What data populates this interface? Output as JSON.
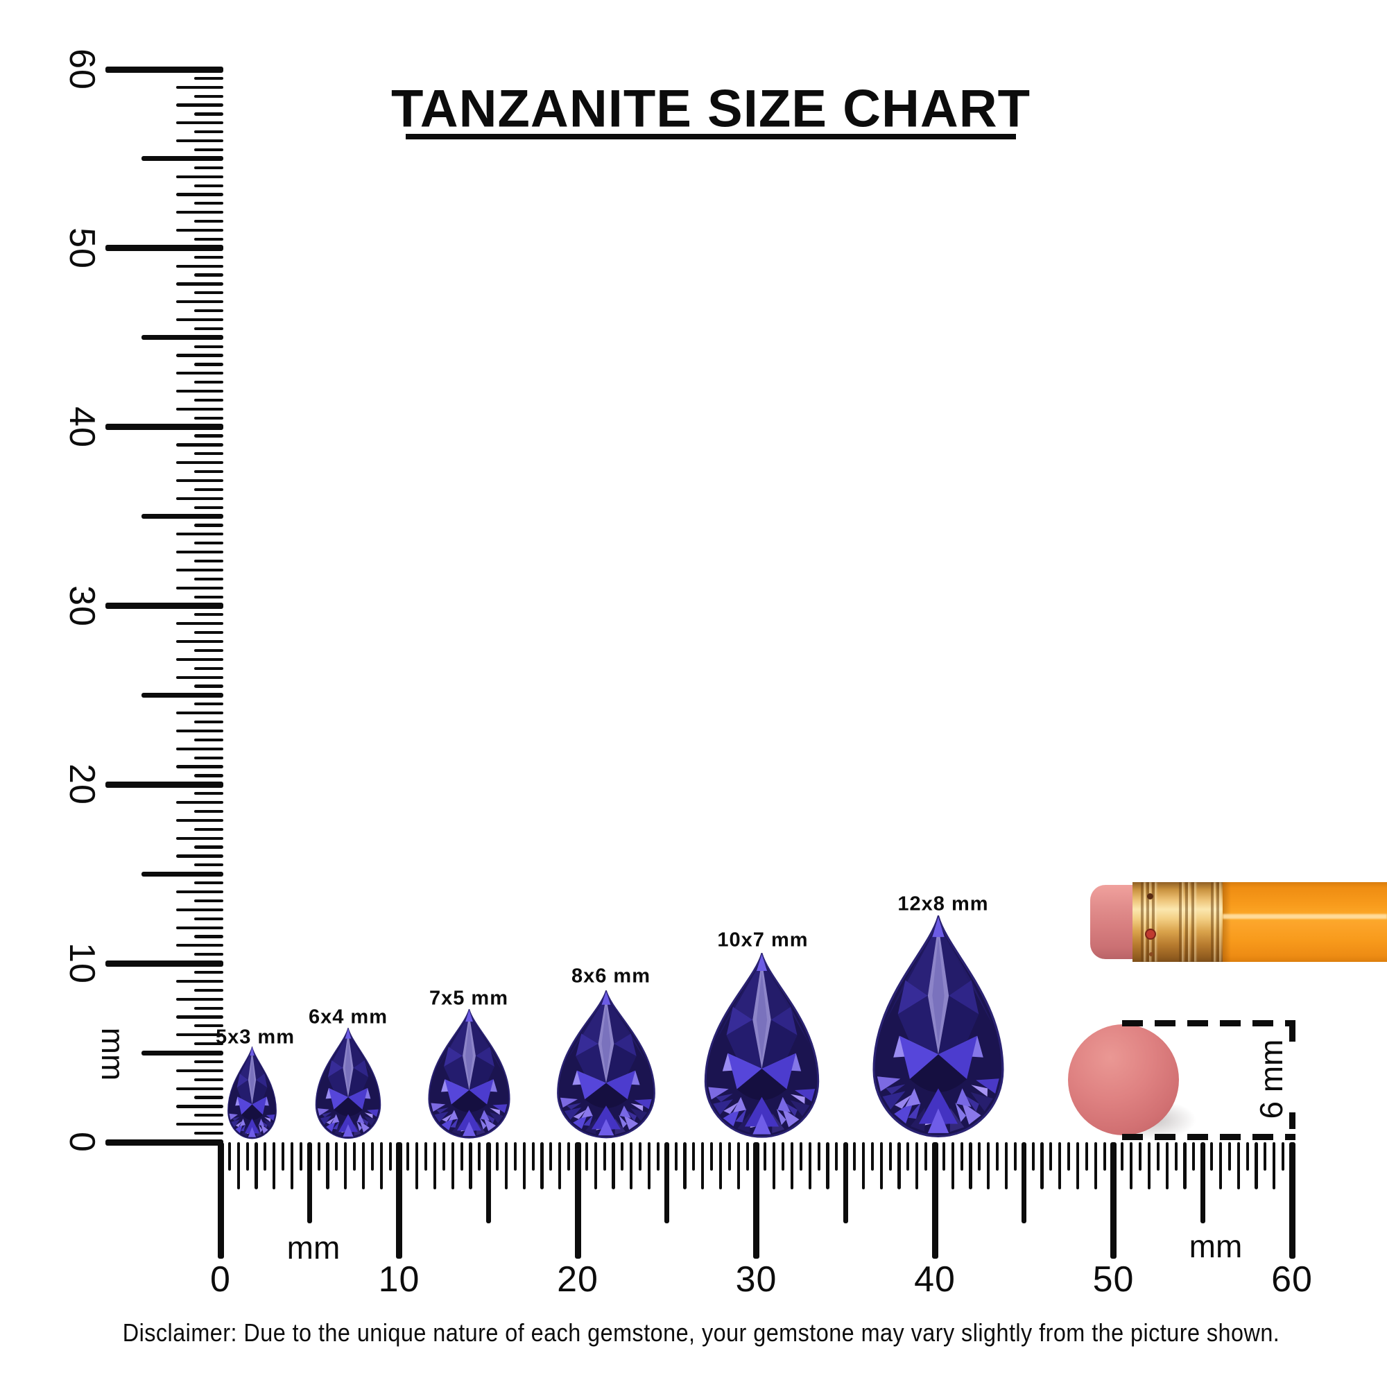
{
  "title": {
    "text": "TANZANITE SIZE CHART"
  },
  "rulers": {
    "vertical": {
      "unit": "mm",
      "labels": [
        "60",
        "50",
        "40",
        "30",
        "20",
        "10",
        "0"
      ]
    },
    "horizontal": {
      "unit_left": "mm",
      "unit_right": "mm",
      "labels": [
        "0",
        "10",
        "20",
        "30",
        "40",
        "50",
        "60"
      ]
    }
  },
  "gems": [
    {
      "label": "5x3 mm",
      "height_mm": 5,
      "width_mm": 3
    },
    {
      "label": "6x4 mm",
      "height_mm": 6,
      "width_mm": 4
    },
    {
      "label": "7x5 mm",
      "height_mm": 7,
      "width_mm": 5
    },
    {
      "label": "8x6 mm",
      "height_mm": 8,
      "width_mm": 6
    },
    {
      "label": "10x7 mm",
      "height_mm": 10,
      "width_mm": 7
    },
    {
      "label": "12x8 mm",
      "height_mm": 12,
      "width_mm": 8
    }
  ],
  "eraser_measurement": {
    "label": "6 mm",
    "diameter_mm": 6
  },
  "disclaimer": "Disclaimer: Due to the unique nature of each gemstone, your gemstone may vary slightly from the picture shown.",
  "colors": {
    "ink": "#0c0c0c",
    "gem_dark": "#1b1450",
    "gem_mid": "#3a2da0",
    "gem_bright": "#5646da",
    "gem_light": "#8a79ec",
    "gem_pale": "#c0b0fa",
    "pencil_body_orange": "#f89b1c",
    "ferrule_gold": "#edc276",
    "eraser_pink": "#d87f80",
    "round_eraser": "#d27173"
  }
}
